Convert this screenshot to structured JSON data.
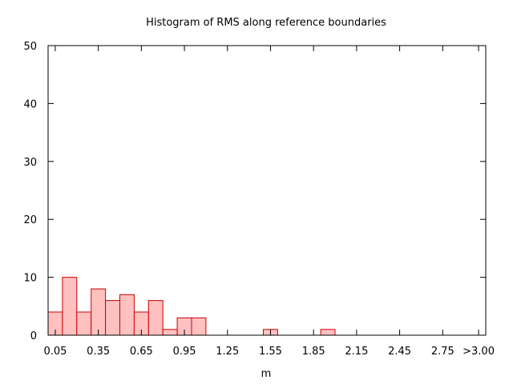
{
  "chart_data": {
    "type": "bar",
    "title": "Histogram of RMS along reference boundaries",
    "xlabel": "m",
    "ylabel": "",
    "ylim": [
      0,
      50
    ],
    "xlim": [
      0,
      3.05
    ],
    "grid": false,
    "legend": "none",
    "bin_width": 0.1,
    "bins": [
      {
        "start": 0.0,
        "value": 4
      },
      {
        "start": 0.1,
        "value": 10
      },
      {
        "start": 0.2,
        "value": 4
      },
      {
        "start": 0.3,
        "value": 8
      },
      {
        "start": 0.4,
        "value": 6
      },
      {
        "start": 0.5,
        "value": 7
      },
      {
        "start": 0.6,
        "value": 4
      },
      {
        "start": 0.7,
        "value": 6
      },
      {
        "start": 0.8,
        "value": 1
      },
      {
        "start": 0.9,
        "value": 3
      },
      {
        "start": 1.0,
        "value": 3
      },
      {
        "start": 1.5,
        "value": 1
      },
      {
        "start": 1.9,
        "value": 1
      }
    ],
    "x_ticks": [
      {
        "value": 0.05,
        "label": "0.05"
      },
      {
        "value": 0.35,
        "label": "0.35"
      },
      {
        "value": 0.65,
        "label": "0.65"
      },
      {
        "value": 0.95,
        "label": "0.95"
      },
      {
        "value": 1.25,
        "label": "1.25"
      },
      {
        "value": 1.55,
        "label": "1.55"
      },
      {
        "value": 1.85,
        "label": "1.85"
      },
      {
        "value": 2.15,
        "label": "2.15"
      },
      {
        "value": 2.45,
        "label": "2.45"
      },
      {
        "value": 2.75,
        "label": "2.75"
      },
      {
        "value": 3.0,
        "label": ">3.00"
      }
    ],
    "y_ticks": [
      {
        "value": 0,
        "label": "0"
      },
      {
        "value": 10,
        "label": "10"
      },
      {
        "value": 20,
        "label": "20"
      },
      {
        "value": 30,
        "label": "30"
      },
      {
        "value": 40,
        "label": "40"
      },
      {
        "value": 50,
        "label": "50"
      }
    ],
    "colors": {
      "bar_fill": "#ffc0c0",
      "bar_stroke": "#cc0000",
      "axis": "#000000"
    }
  }
}
